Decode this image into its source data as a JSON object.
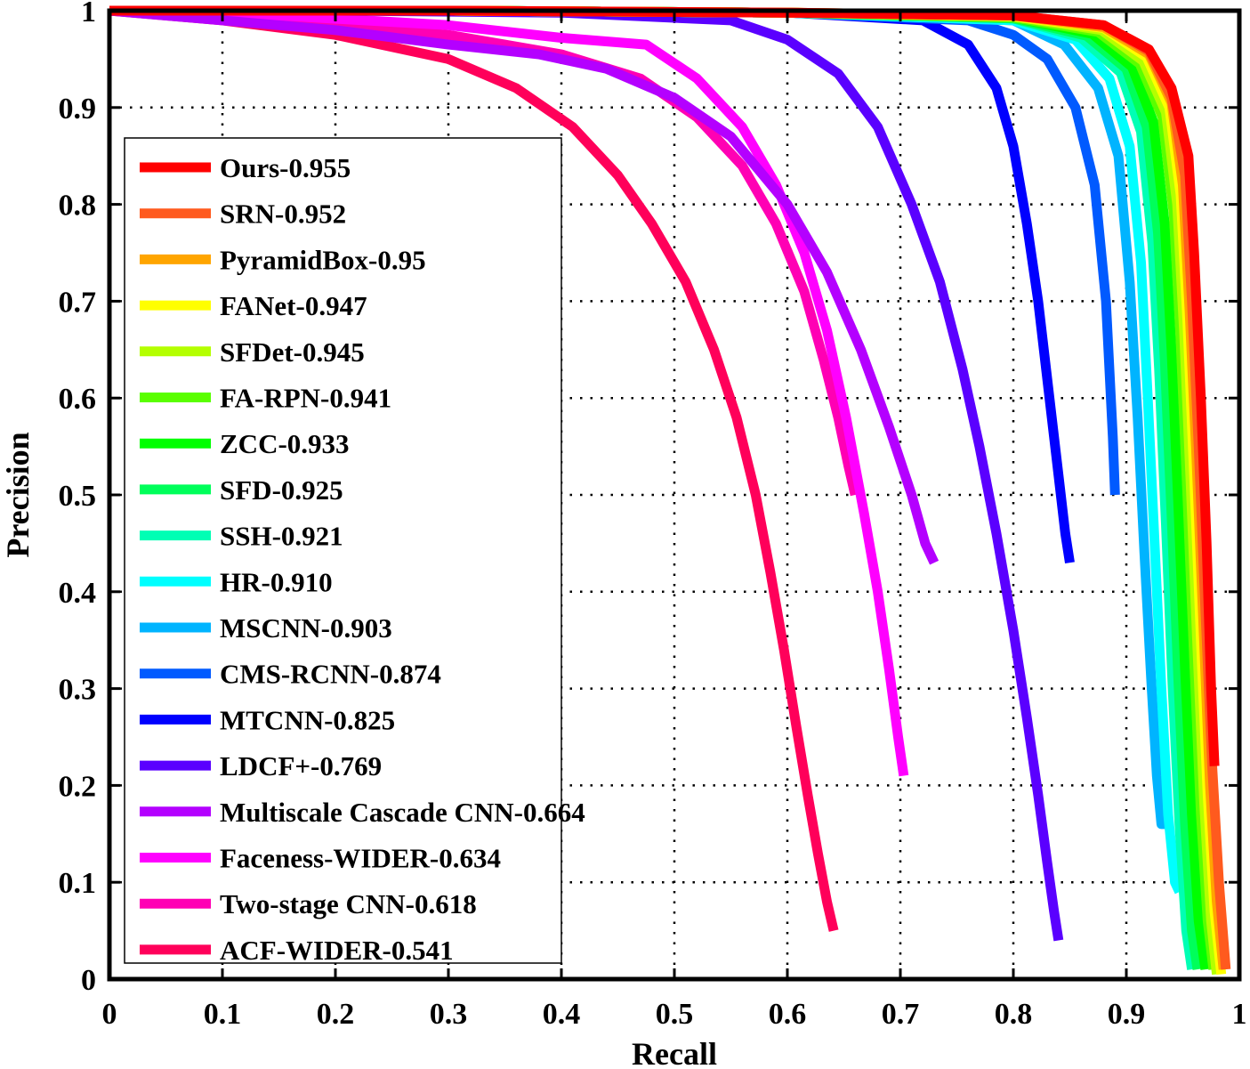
{
  "chart_data": {
    "type": "line",
    "title": "",
    "xlabel": "Recall",
    "ylabel": "Precision",
    "xlim": [
      0,
      1
    ],
    "ylim": [
      0,
      1
    ],
    "xticks": [
      "0",
      "0.1",
      "0.2",
      "0.3",
      "0.4",
      "0.5",
      "0.6",
      "0.7",
      "0.8",
      "0.9",
      "1"
    ],
    "yticks": [
      "0",
      "0.1",
      "0.2",
      "0.3",
      "0.4",
      "0.5",
      "0.6",
      "0.7",
      "0.8",
      "0.9",
      "1"
    ],
    "grid": true,
    "legend_position": "middle-left",
    "series": [
      {
        "name": "Ours-0.955",
        "color": "#ff0000",
        "x": [
          0,
          0.3,
          0.6,
          0.8,
          0.88,
          0.92,
          0.94,
          0.955,
          0.96,
          0.966,
          0.971,
          0.975,
          0.978
        ],
        "y": [
          1,
          1,
          0.998,
          0.995,
          0.985,
          0.96,
          0.92,
          0.85,
          0.75,
          0.6,
          0.45,
          0.3,
          0.22
        ]
      },
      {
        "name": "SRN-0.952",
        "color": "#ff5a1e",
        "x": [
          0,
          0.3,
          0.6,
          0.8,
          0.88,
          0.92,
          0.94,
          0.952,
          0.958,
          0.964,
          0.97,
          0.976,
          0.982,
          0.988
        ],
        "y": [
          1,
          1,
          0.998,
          0.995,
          0.985,
          0.958,
          0.91,
          0.83,
          0.7,
          0.55,
          0.38,
          0.22,
          0.1,
          0.01
        ]
      },
      {
        "name": "PyramidBox-0.95",
        "color": "#ffa500",
        "x": [
          0,
          0.3,
          0.6,
          0.8,
          0.88,
          0.92,
          0.94,
          0.95,
          0.956,
          0.962,
          0.968,
          0.974,
          0.98,
          0.986
        ],
        "y": [
          1,
          1,
          0.998,
          0.995,
          0.983,
          0.955,
          0.905,
          0.82,
          0.69,
          0.54,
          0.37,
          0.2,
          0.08,
          0.01
        ]
      },
      {
        "name": "FANet-0.947",
        "color": "#ffff00",
        "x": [
          0,
          0.3,
          0.6,
          0.8,
          0.88,
          0.918,
          0.938,
          0.948,
          0.954,
          0.96,
          0.966,
          0.972,
          0.978,
          0.984
        ],
        "y": [
          1,
          1,
          0.998,
          0.994,
          0.982,
          0.952,
          0.9,
          0.81,
          0.68,
          0.52,
          0.35,
          0.19,
          0.07,
          0.005
        ]
      },
      {
        "name": "SFDet-0.945",
        "color": "#b4ff00",
        "x": [
          0,
          0.3,
          0.6,
          0.8,
          0.878,
          0.915,
          0.935,
          0.945,
          0.951,
          0.957,
          0.963,
          0.969,
          0.975,
          0.98
        ],
        "y": [
          1,
          1,
          0.998,
          0.994,
          0.98,
          0.948,
          0.895,
          0.8,
          0.67,
          0.51,
          0.34,
          0.18,
          0.06,
          0.005
        ]
      },
      {
        "name": "FA-RPN-0.941",
        "color": "#5aff00",
        "x": [
          0,
          0.3,
          0.6,
          0.8,
          0.875,
          0.912,
          0.932,
          0.942,
          0.948,
          0.954,
          0.96,
          0.966,
          0.972,
          0.977
        ],
        "y": [
          1,
          1,
          0.998,
          0.993,
          0.978,
          0.945,
          0.89,
          0.79,
          0.66,
          0.5,
          0.33,
          0.17,
          0.06,
          0.01
        ]
      },
      {
        "name": "ZCC-0.933",
        "color": "#00ff00",
        "x": [
          0,
          0.3,
          0.6,
          0.8,
          0.87,
          0.905,
          0.924,
          0.934,
          0.94,
          0.946,
          0.952,
          0.958,
          0.964,
          0.97
        ],
        "y": [
          1,
          1,
          0.998,
          0.993,
          0.976,
          0.942,
          0.885,
          0.78,
          0.65,
          0.49,
          0.32,
          0.17,
          0.06,
          0.01
        ]
      },
      {
        "name": "SFD-0.925",
        "color": "#00ff5a",
        "x": [
          0,
          0.3,
          0.6,
          0.8,
          0.865,
          0.9,
          0.918,
          0.928,
          0.934,
          0.94,
          0.946,
          0.952,
          0.958,
          0.963
        ],
        "y": [
          1,
          1,
          0.998,
          0.992,
          0.974,
          0.94,
          0.88,
          0.77,
          0.64,
          0.48,
          0.31,
          0.16,
          0.05,
          0.01
        ]
      },
      {
        "name": "SSH-0.921",
        "color": "#00ffb4",
        "x": [
          0,
          0.3,
          0.6,
          0.8,
          0.86,
          0.895,
          0.913,
          0.923,
          0.929,
          0.935,
          0.941,
          0.947,
          0.953,
          0.958
        ],
        "y": [
          1,
          1,
          0.998,
          0.992,
          0.972,
          0.936,
          0.875,
          0.76,
          0.63,
          0.47,
          0.3,
          0.16,
          0.05,
          0.01
        ]
      },
      {
        "name": "HR-0.910",
        "color": "#00ffff",
        "x": [
          0,
          0.3,
          0.6,
          0.8,
          0.855,
          0.885,
          0.903,
          0.913,
          0.919,
          0.925,
          0.931,
          0.937,
          0.943,
          0.947
        ],
        "y": [
          1,
          1,
          0.998,
          0.99,
          0.97,
          0.93,
          0.86,
          0.74,
          0.6,
          0.45,
          0.3,
          0.17,
          0.1,
          0.09
        ]
      },
      {
        "name": "MSCNN-0.903",
        "color": "#00b4ff",
        "x": [
          0,
          0.3,
          0.6,
          0.8,
          0.845,
          0.875,
          0.893,
          0.903,
          0.91,
          0.916,
          0.922,
          0.927,
          0.931,
          0.934
        ],
        "y": [
          1,
          1,
          0.998,
          0.99,
          0.965,
          0.92,
          0.85,
          0.72,
          0.58,
          0.44,
          0.31,
          0.21,
          0.16,
          0.16
        ]
      },
      {
        "name": "CMS-RCNN-0.874",
        "color": "#005aff",
        "x": [
          0,
          0.3,
          0.6,
          0.76,
          0.8,
          0.83,
          0.855,
          0.872,
          0.882,
          0.888,
          0.89
        ],
        "y": [
          1,
          1,
          0.998,
          0.99,
          0.975,
          0.95,
          0.9,
          0.82,
          0.7,
          0.56,
          0.5
        ]
      },
      {
        "name": "MTCNN-0.825",
        "color": "#0000ff",
        "x": [
          0,
          0.3,
          0.6,
          0.72,
          0.76,
          0.785,
          0.8,
          0.812,
          0.822,
          0.832,
          0.84,
          0.846,
          0.85
        ],
        "y": [
          1,
          1,
          0.998,
          0.99,
          0.965,
          0.92,
          0.86,
          0.78,
          0.7,
          0.6,
          0.52,
          0.46,
          0.43
        ]
      },
      {
        "name": "LDCF+-0.769",
        "color": "#5a00ff",
        "x": [
          0,
          0.2,
          0.4,
          0.55,
          0.6,
          0.645,
          0.68,
          0.71,
          0.735,
          0.755,
          0.77,
          0.785,
          0.8,
          0.812,
          0.822,
          0.83,
          0.836,
          0.84
        ],
        "y": [
          1,
          1,
          0.998,
          0.99,
          0.97,
          0.935,
          0.88,
          0.8,
          0.72,
          0.63,
          0.55,
          0.46,
          0.36,
          0.27,
          0.19,
          0.12,
          0.07,
          0.04
        ]
      },
      {
        "name": "Multiscale Cascade CNN-0.664",
        "color": "#b400ff",
        "x": [
          0,
          0.1,
          0.2,
          0.3,
          0.38,
          0.44,
          0.5,
          0.55,
          0.6,
          0.635,
          0.665,
          0.69,
          0.71,
          0.722,
          0.73
        ],
        "y": [
          1,
          0.99,
          0.98,
          0.965,
          0.955,
          0.94,
          0.91,
          0.87,
          0.8,
          0.73,
          0.65,
          0.57,
          0.5,
          0.45,
          0.43
        ]
      },
      {
        "name": "Faceness-WIDER-0.634",
        "color": "#ff00ff",
        "x": [
          0,
          0.15,
          0.3,
          0.4,
          0.475,
          0.52,
          0.56,
          0.59,
          0.615,
          0.635,
          0.652,
          0.668,
          0.68,
          0.69,
          0.698,
          0.703
        ],
        "y": [
          1,
          0.995,
          0.985,
          0.972,
          0.965,
          0.93,
          0.88,
          0.82,
          0.75,
          0.67,
          0.58,
          0.48,
          0.4,
          0.32,
          0.25,
          0.21
        ]
      },
      {
        "name": "Two-stage CNN-0.618",
        "color": "#ff00b4",
        "x": [
          0,
          0.15,
          0.3,
          0.4,
          0.47,
          0.52,
          0.56,
          0.59,
          0.615,
          0.632,
          0.645,
          0.654,
          0.66
        ],
        "y": [
          1,
          0.99,
          0.975,
          0.955,
          0.93,
          0.89,
          0.84,
          0.78,
          0.71,
          0.64,
          0.58,
          0.53,
          0.5
        ]
      },
      {
        "name": "ACF-WIDER-0.541",
        "color": "#ff005a",
        "x": [
          0,
          0.1,
          0.2,
          0.3,
          0.36,
          0.41,
          0.45,
          0.48,
          0.51,
          0.535,
          0.555,
          0.572,
          0.585,
          0.597,
          0.608,
          0.618,
          0.627,
          0.635,
          0.641
        ],
        "y": [
          1,
          0.99,
          0.975,
          0.95,
          0.92,
          0.88,
          0.83,
          0.78,
          0.72,
          0.65,
          0.58,
          0.5,
          0.42,
          0.34,
          0.26,
          0.19,
          0.13,
          0.08,
          0.05
        ]
      }
    ]
  }
}
